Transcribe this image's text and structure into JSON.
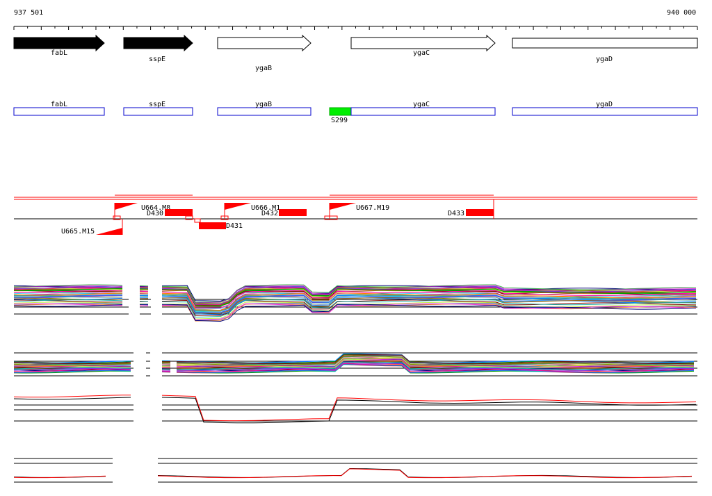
{
  "ruler": {
    "start_label": "937 501",
    "end_label": "940 000"
  },
  "genes": [
    {
      "name": "fabL",
      "filled": true
    },
    {
      "name": "sspE",
      "filled": true
    },
    {
      "name": "ygaB",
      "filled": false
    },
    {
      "name": "ygaC",
      "filled": false
    },
    {
      "name": "ygaD",
      "filled": false
    }
  ],
  "gene_boxes": [
    "fabL",
    "sspE",
    "ygaB",
    "ygaC",
    "ygaD"
  ],
  "feature": {
    "label": "S299",
    "color": "#00ee00"
  },
  "promoters_forward": [
    "U664.M8",
    "U666.M1",
    "U667.M19"
  ],
  "promoters_reverse": [
    "U665.M15"
  ],
  "transcripts": [
    "D430",
    "D431",
    "D432",
    "D433"
  ],
  "colors": {
    "accent": "#ff0000",
    "box_outline": "#0000cc",
    "axis": "#000000"
  }
}
